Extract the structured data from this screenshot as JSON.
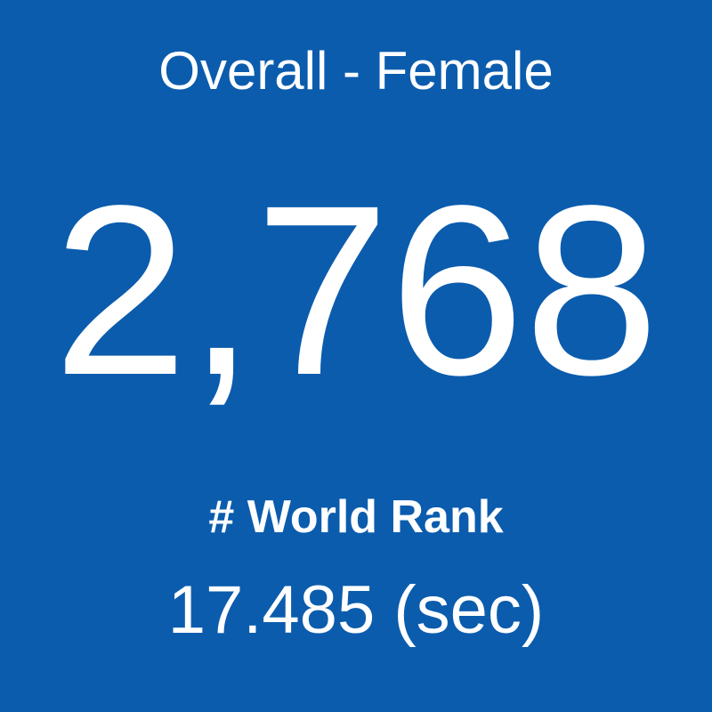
{
  "tile": {
    "title": "Overall - Female",
    "value": "2,768",
    "label": "# World Rank",
    "detail": "17.485 (sec)"
  }
}
